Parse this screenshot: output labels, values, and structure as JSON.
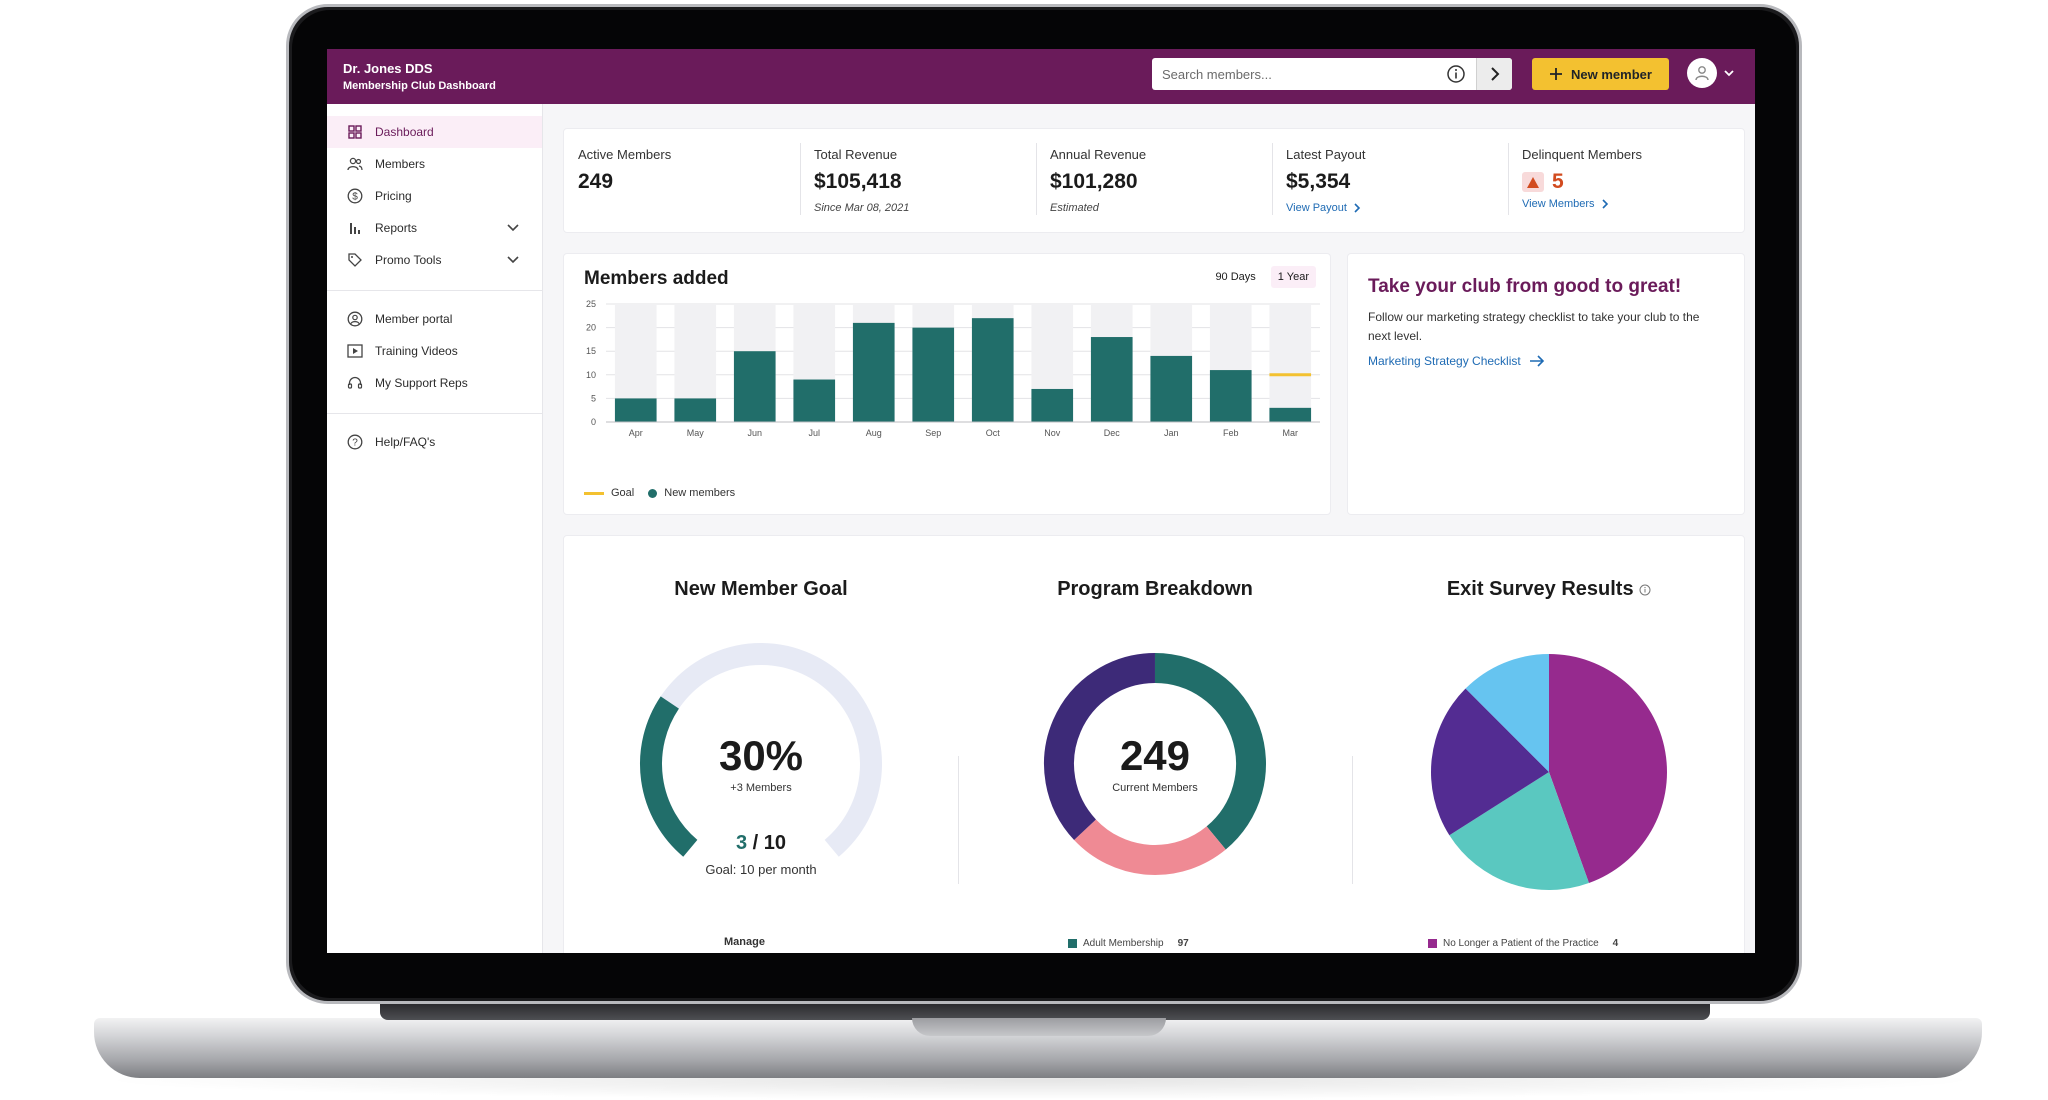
{
  "app": {
    "practice_name": "Dr. Jones DDS",
    "dashboard_name": "Membership Club Dashboard"
  },
  "header": {
    "search_placeholder": "Search members...",
    "new_member_label": "New member"
  },
  "sidebar": {
    "primary": [
      {
        "label": "Dashboard",
        "icon": "grid-icon"
      },
      {
        "label": "Members",
        "icon": "users-icon"
      },
      {
        "label": "Pricing",
        "icon": "dollar-icon"
      },
      {
        "label": "Reports",
        "icon": "bar-chart-icon"
      },
      {
        "label": "Promo Tools",
        "icon": "tag-icon"
      }
    ],
    "secondary": [
      {
        "label": "Member portal",
        "icon": "user-circle-icon"
      },
      {
        "label": "Training Videos",
        "icon": "play-icon"
      },
      {
        "label": "My Support Reps",
        "icon": "headset-icon"
      }
    ],
    "tertiary": [
      {
        "label": "Help/FAQ's",
        "icon": "help-icon"
      }
    ]
  },
  "stats": {
    "active_members": {
      "label": "Active Members",
      "value": "249"
    },
    "total_revenue": {
      "label": "Total Revenue",
      "value": "$105,418",
      "note": "Since Mar 08, 2021"
    },
    "annual_revenue": {
      "label": "Annual Revenue",
      "value": "$101,280",
      "note": "Estimated"
    },
    "latest_payout": {
      "label": "Latest Payout",
      "value": "$5,354",
      "link": "View Payout"
    },
    "delinquent": {
      "label": "Delinquent Members",
      "value": "5",
      "link": "View Members"
    }
  },
  "members_chart": {
    "title": "Members added",
    "range_options": [
      "90 Days",
      "1 Year"
    ],
    "selected_range": "1 Year",
    "legend_goal": "Goal",
    "legend_new": "New members"
  },
  "chart_data": {
    "type": "bar",
    "categories": [
      "Apr",
      "May",
      "Jun",
      "Jul",
      "Aug",
      "Sep",
      "Oct",
      "Nov",
      "Dec",
      "Jan",
      "Feb",
      "Mar"
    ],
    "series": [
      {
        "name": "New members",
        "values": [
          5,
          5,
          15,
          9,
          21,
          20,
          22,
          7,
          18,
          14,
          11,
          3
        ],
        "color": "#216e6a"
      }
    ],
    "goal": {
      "name": "Goal",
      "value": 10,
      "category": "Mar",
      "color": "#f3c130"
    },
    "ylim": [
      0,
      25
    ],
    "yticks": [
      0,
      5,
      10,
      15,
      20,
      25
    ],
    "grid": true
  },
  "promo": {
    "title": "Take your club from good to great!",
    "body": "Follow our marketing strategy checklist to take your club to the next level.",
    "link": "Marketing Strategy Checklist"
  },
  "goal_panel": {
    "title": "New Member Goal",
    "percent_label": "30%",
    "percent": 0.3,
    "delta_label": "+3 Members",
    "current": "3",
    "separator": "/",
    "target": "10",
    "note": "Goal: 10 per month",
    "footer_partial": "Manage"
  },
  "program_panel": {
    "title": "Program Breakdown",
    "center_value": "249",
    "center_label": "Current Members",
    "segments": [
      {
        "fraction": 0.39,
        "color": "#216e6a"
      },
      {
        "fraction": 0.24,
        "color": "#ef8a94"
      },
      {
        "fraction": 0.37,
        "color": "#3d2a78"
      }
    ],
    "legend_partial": "Adult Membership",
    "legend_partial_value": "97"
  },
  "exit_panel": {
    "title": "Exit Survey Results",
    "segments": [
      {
        "fraction": 0.445,
        "color": "#962a8e"
      },
      {
        "fraction": 0.215,
        "color": "#5ac8c0"
      },
      {
        "fraction": 0.215,
        "color": "#532c92"
      },
      {
        "fraction": 0.125,
        "color": "#66c4f0"
      }
    ],
    "legend_partial": "No Longer a Patient of the Practice",
    "legend_partial_value": "4"
  }
}
